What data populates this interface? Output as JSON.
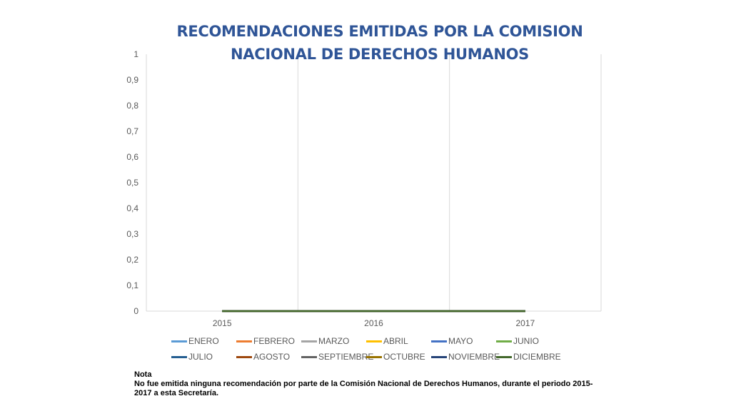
{
  "chart_data": {
    "type": "line",
    "title_lines": [
      "RECOMENDACIONES EMITIDAS POR LA COMISION",
      "NACIONAL DE DERECHOS HUMANOS"
    ],
    "categories": [
      "2015",
      "2016",
      "2017"
    ],
    "ylim": [
      0,
      1
    ],
    "y_ticks": [
      "0",
      "0,1",
      "0,2",
      "0,3",
      "0,4",
      "0,5",
      "0,6",
      "0,7",
      "0,8",
      "0,9",
      "1"
    ],
    "grid": "vertical",
    "legend_position": "bottom",
    "series": [
      {
        "name": "ENERO",
        "values": [
          0,
          0,
          0
        ],
        "color": "#5b9bd5"
      },
      {
        "name": "FEBRERO",
        "values": [
          0,
          0,
          0
        ],
        "color": "#ed7d31"
      },
      {
        "name": "MARZO",
        "values": [
          0,
          0,
          0
        ],
        "color": "#a5a5a5"
      },
      {
        "name": "ABRIL",
        "values": [
          0,
          0,
          0
        ],
        "color": "#ffc000"
      },
      {
        "name": "MAYO",
        "values": [
          0,
          0,
          0
        ],
        "color": "#4472c4"
      },
      {
        "name": "JUNIO",
        "values": [
          0,
          0,
          0
        ],
        "color": "#70ad47"
      },
      {
        "name": "JULIO",
        "values": [
          0,
          0,
          0
        ],
        "color": "#255e91"
      },
      {
        "name": "AGOSTO",
        "values": [
          0,
          0,
          0
        ],
        "color": "#9e480e"
      },
      {
        "name": "SEPTIEMBRE",
        "values": [
          0,
          0,
          0
        ],
        "color": "#636363"
      },
      {
        "name": "OCTUBRE",
        "values": [
          0,
          0,
          0
        ],
        "color": "#997300"
      },
      {
        "name": "NOVIEMBRE",
        "values": [
          0,
          0,
          0
        ],
        "color": "#264478"
      },
      {
        "name": "DICIEMBRE",
        "values": [
          0,
          0,
          0
        ],
        "color": "#43682b"
      }
    ]
  },
  "note": {
    "heading": "Nota",
    "text": "No fue emitida ninguna recomendación por parte de la Comisión Nacional de Derechos Humanos, durante el periodo 2015-2017 a esta Secretaría."
  },
  "colors": {
    "title": "#2f5597",
    "gridline": "#d9d9d9",
    "tick_text": "#595959"
  }
}
